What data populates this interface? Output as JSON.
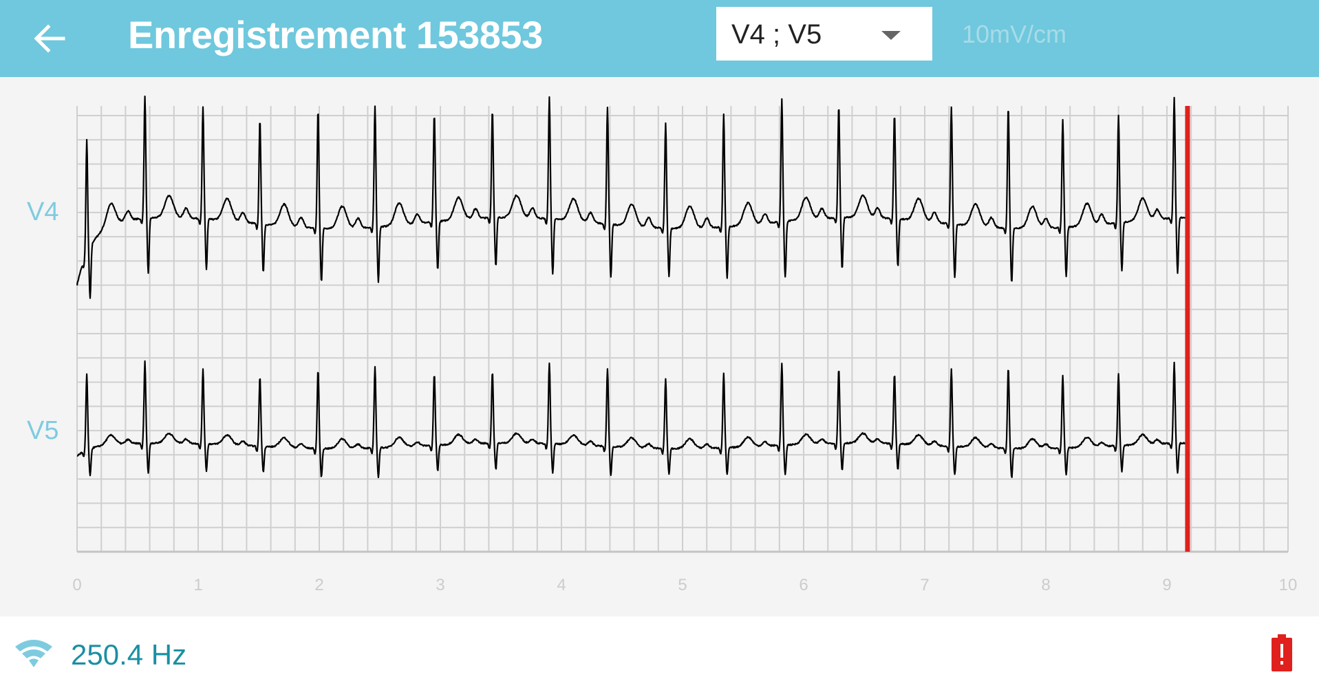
{
  "header": {
    "back_icon": "arrow-left-icon",
    "title": "Enregistrement 153853",
    "lead_select": {
      "value": "V4 ; V5"
    },
    "scale": "10mV/cm",
    "color": "#6fc8dd"
  },
  "chart_data": {
    "type": "line",
    "title": "",
    "xlabel": "",
    "ylabel": "",
    "xlim": [
      0,
      10
    ],
    "x_ticks": [
      "0",
      "1",
      "2",
      "3",
      "4",
      "5",
      "6",
      "7",
      "8",
      "9",
      "10"
    ],
    "grid": true,
    "x_grid_step_s": 0.2,
    "series": [
      {
        "name": "V4",
        "color": "#000000",
        "r_peaks_s": [
          0.08,
          0.56,
          1.04,
          1.51,
          1.99,
          2.46,
          2.95,
          3.43,
          3.9,
          4.38,
          4.86,
          5.34,
          5.82,
          6.29,
          6.75,
          7.22,
          7.69,
          8.14,
          8.6,
          9.06
        ]
      },
      {
        "name": "V5",
        "color": "#000000",
        "r_peaks_s": [
          0.08,
          0.56,
          1.04,
          1.51,
          1.99,
          2.46,
          2.95,
          3.43,
          3.9,
          4.38,
          4.86,
          5.34,
          5.82,
          6.29,
          6.75,
          7.22,
          7.69,
          8.14,
          8.6,
          9.06
        ]
      }
    ],
    "trace_end_s": 9.17,
    "cursor": {
      "x": 9.17,
      "color": "#e0201c"
    }
  },
  "footer": {
    "signal_icon": "wifi-icon",
    "frequency": "250.4 Hz",
    "battery_icon": "battery-alert-icon",
    "battery_color": "#e0201c"
  }
}
